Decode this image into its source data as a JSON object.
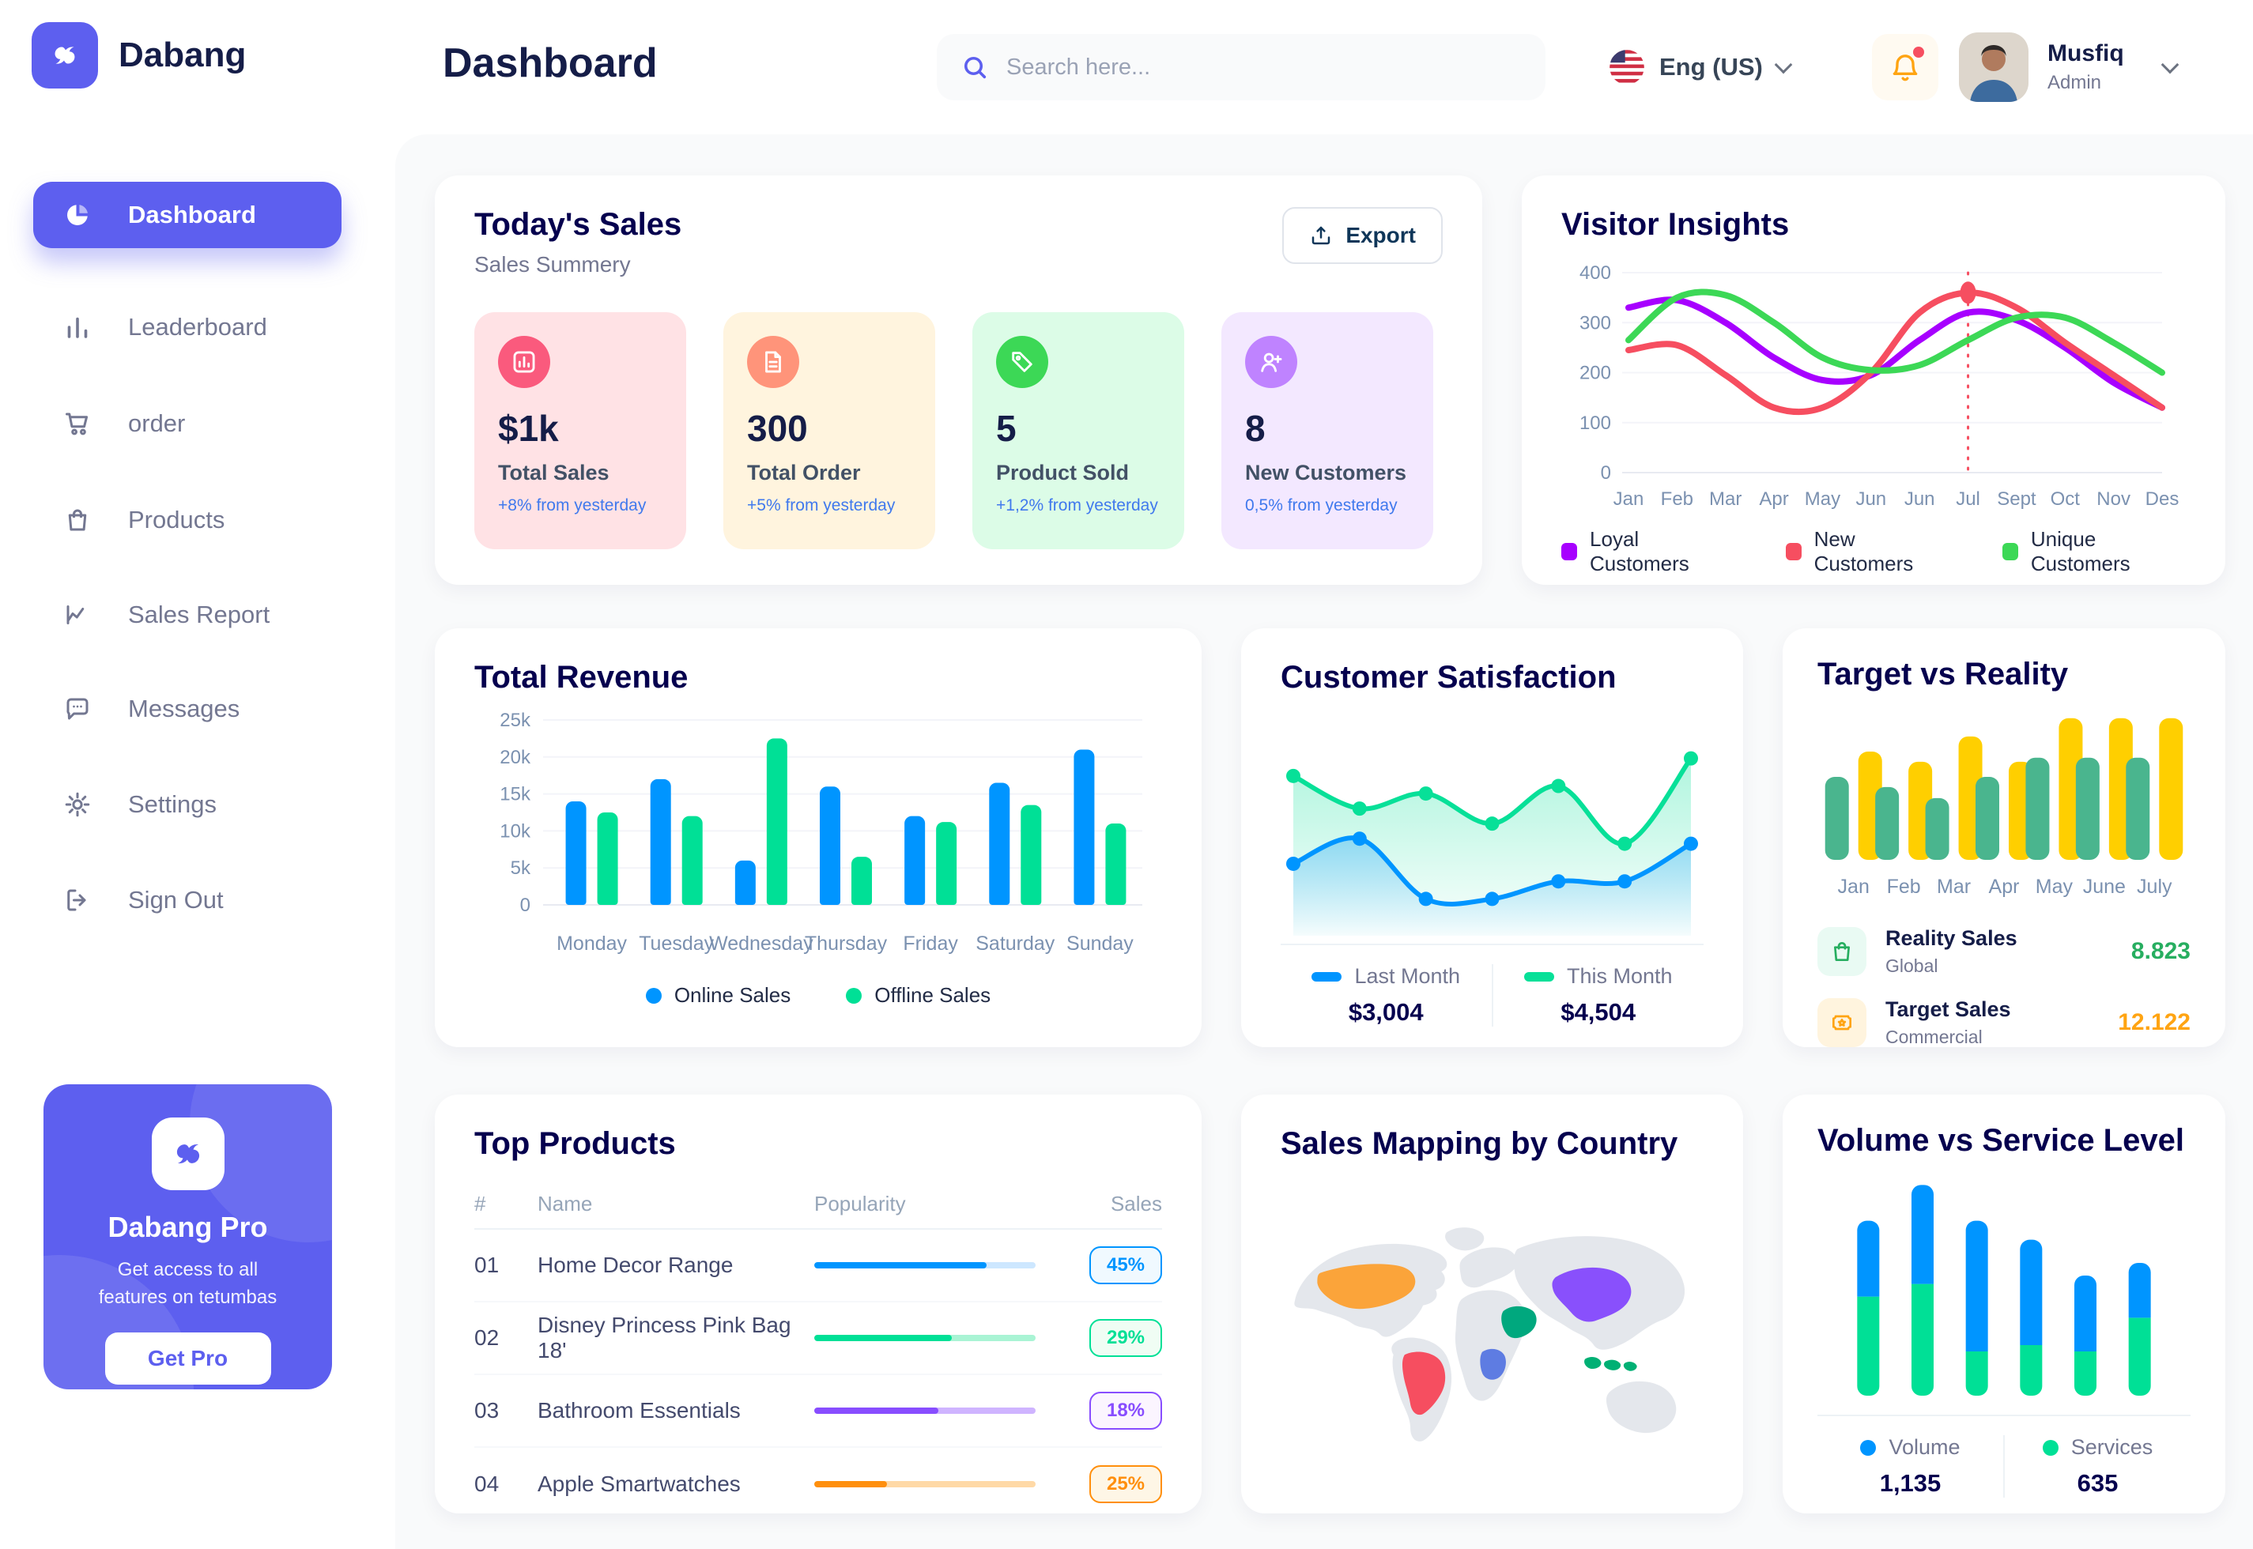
{
  "header": {
    "title": "Dashboard",
    "search_placeholder": "Search here...",
    "language": "Eng (US)",
    "user": {
      "name": "Musfiq",
      "role": "Admin"
    }
  },
  "sidebar": {
    "brand": "Dabang",
    "items": [
      "Dashboard",
      "Leaderboard",
      "order",
      "Products",
      "Sales Report",
      "Messages",
      "Settings",
      "Sign Out"
    ],
    "promo": {
      "title": "Dabang Pro",
      "line1": "Get access to all",
      "line2": "features on tetumbas",
      "cta": "Get Pro"
    }
  },
  "todays_sales": {
    "title": "Today's Sales",
    "subtitle": "Sales Summery",
    "export_label": "Export",
    "cards": [
      {
        "value": "$1k",
        "label": "Total Sales",
        "delta": "+8% from yesterday",
        "bg": "#FFE2E5",
        "icon_bg": "#FA5A7D"
      },
      {
        "value": "300",
        "label": "Total Order",
        "delta": "+5% from yesterday",
        "bg": "#FFF4DE",
        "icon_bg": "#FF947A"
      },
      {
        "value": "5",
        "label": "Product Sold",
        "delta": "+1,2% from yesterday",
        "bg": "#DCFCE7",
        "icon_bg": "#3CD856"
      },
      {
        "value": "8",
        "label": "New Customers",
        "delta": "0,5% from yesterday",
        "bg": "#F3E8FF",
        "icon_bg": "#BF83FF"
      }
    ]
  },
  "top_products": {
    "title": "Top Products",
    "headers": {
      "num": "#",
      "name": "Name",
      "popularity": "Popularity",
      "sales": "Sales"
    },
    "rows": [
      {
        "num": "01",
        "name": "Home Decor Range",
        "popularity": 78,
        "sales": "45%",
        "color": "#0095FF",
        "track": "#CDE7FF",
        "badge_bg": "#F0F9FF"
      },
      {
        "num": "02",
        "name": "Disney Princess Pink Bag 18'",
        "popularity": 62,
        "sales": "29%",
        "color": "#00E096",
        "track": "#A9F4D4",
        "badge_bg": "#F0FDF4"
      },
      {
        "num": "03",
        "name": "Bathroom Essentials",
        "popularity": 56,
        "sales": "18%",
        "color": "#884DFF",
        "track": "#CFB4FF",
        "badge_bg": "#FBF5FF"
      },
      {
        "num": "04",
        "name": "Apple Smartwatches",
        "popularity": 33,
        "sales": "25%",
        "color": "#FF8F0D",
        "track": "#FFD9A6",
        "badge_bg": "#FEF6E6"
      }
    ]
  },
  "sales_map": {
    "title": "Sales Mapping by Country",
    "land_color": "#E4E7EC",
    "countries": [
      {
        "name": "United States",
        "color": "#FBA43A"
      },
      {
        "name": "Brazil",
        "color": "#F64E60"
      },
      {
        "name": "Saudi Arabia",
        "color": "#00A87E"
      },
      {
        "name": "DR Congo",
        "color": "#5E7CE2"
      },
      {
        "name": "China",
        "color": "#8950FC"
      },
      {
        "name": "Indonesia",
        "color": "#00B074"
      }
    ]
  },
  "chart_data": [
    {
      "id": "visitor-insights",
      "type": "line",
      "title": "Visitor Insights",
      "x": [
        "Jan",
        "Feb",
        "Mar",
        "Apr",
        "May",
        "Jun",
        "Jun",
        "Jul",
        "Sept",
        "Oct",
        "Nov",
        "Des"
      ],
      "ylim": [
        0,
        400
      ],
      "yticks": [
        0,
        100,
        200,
        300,
        400
      ],
      "series": [
        {
          "name": "Loyal Customers",
          "color": "#A700FF",
          "values": [
            330,
            345,
            300,
            230,
            185,
            195,
            265,
            320,
            305,
            250,
            180,
            130
          ]
        },
        {
          "name": "New Customers",
          "color": "#F64E60",
          "values": [
            245,
            255,
            195,
            130,
            130,
            200,
            320,
            360,
            330,
            260,
            195,
            130
          ]
        },
        {
          "name": "Unique Customers",
          "color": "#3CD856",
          "values": [
            265,
            350,
            355,
            300,
            230,
            205,
            215,
            265,
            310,
            310,
            260,
            200
          ]
        }
      ],
      "marker": {
        "series": 1,
        "index": 7
      }
    },
    {
      "id": "total-revenue",
      "type": "bar",
      "title": "Total Revenue",
      "categories": [
        "Monday",
        "Tuesday",
        "Wednesday",
        "Thursday",
        "Friday",
        "Saturday",
        "Sunday"
      ],
      "ylim": [
        0,
        25000
      ],
      "yticks": [
        {
          "v": 0,
          "label": "0"
        },
        {
          "v": 5000,
          "label": "5k"
        },
        {
          "v": 10000,
          "label": "10k"
        },
        {
          "v": 15000,
          "label": "15k"
        },
        {
          "v": 20000,
          "label": "20k"
        },
        {
          "v": 25000,
          "label": "25k"
        }
      ],
      "series": [
        {
          "name": "Online Sales",
          "color": "#0095FF",
          "values": [
            14000,
            17000,
            6000,
            16000,
            12000,
            16500,
            21000
          ]
        },
        {
          "name": "Offline Sales",
          "color": "#00E096",
          "values": [
            12500,
            12000,
            22500,
            6500,
            11200,
            13500,
            11000
          ]
        }
      ]
    },
    {
      "id": "customer-satisfaction",
      "type": "area",
      "title": "Customer Satisfaction",
      "ylim": [
        0,
        80
      ],
      "series": [
        {
          "name": "Last Month",
          "color": "#0095FF",
          "total": "$3,004",
          "values": [
            23,
            33,
            9,
            9,
            16,
            16,
            31
          ]
        },
        {
          "name": "This Month",
          "color": "#07E098",
          "total": "$4,504",
          "values": [
            58,
            45,
            51,
            39,
            54,
            31,
            65
          ]
        }
      ]
    },
    {
      "id": "target-vs-reality",
      "type": "pill-bar",
      "title": "Target vs Reality",
      "categories": [
        "Jan",
        "Feb",
        "Mar",
        "Apr",
        "May",
        "June",
        "July"
      ],
      "ylim": [
        0,
        15
      ],
      "series": [
        {
          "name": "Reality Sales",
          "color": "#4AB58E",
          "values": [
            8.2,
            7.2,
            6.1,
            8.2,
            10.1,
            10.1,
            10.1
          ]
        },
        {
          "name": "Target Sales",
          "color": "#FFCF00",
          "values": [
            10.7,
            9.7,
            12.2,
            9.7,
            14,
            14,
            14
          ]
        }
      ],
      "legend": [
        {
          "name": "Reality Sales",
          "sub": "Global",
          "value": "8.823",
          "value_color": "#27AE60",
          "icon_bg": "#E9FAF3",
          "icon_color": "#27AE60"
        },
        {
          "name": "Target Sales",
          "sub": "Commercial",
          "value": "12.122",
          "value_color": "#FFA412",
          "icon_bg": "#FFF4DE",
          "icon_color": "#FFA412"
        }
      ]
    },
    {
      "id": "volume-service",
      "type": "stacked-bar",
      "title": "Volume vs Service Level",
      "ylim": [
        0,
        105
      ],
      "series": [
        {
          "name": "Volume",
          "color": "#0095FF",
          "total": "1,135",
          "values": [
            36,
            47,
            62,
            50,
            36,
            26
          ]
        },
        {
          "name": "Services",
          "color": "#00E096",
          "total": "635",
          "values": [
            47,
            53,
            21,
            24,
            21,
            37
          ]
        }
      ]
    }
  ]
}
